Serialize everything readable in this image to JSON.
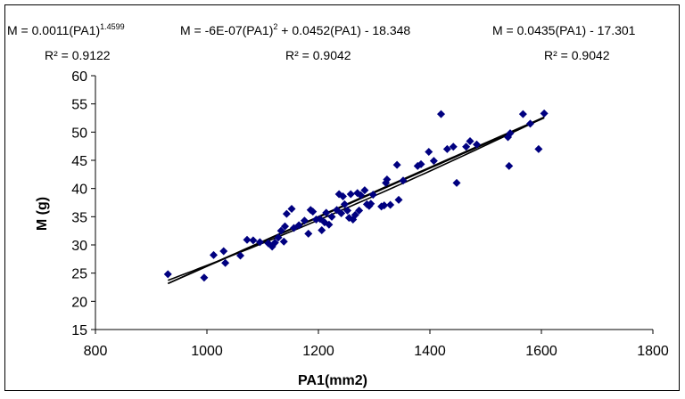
{
  "chart_data": {
    "type": "scatter",
    "xlabel": "PA1(mm2)",
    "ylabel": "M (g)",
    "xlim": [
      800,
      1800
    ],
    "ylim": [
      15,
      60
    ],
    "xticks": [
      800,
      1000,
      1200,
      1400,
      1600,
      1800
    ],
    "yticks": [
      15,
      20,
      25,
      30,
      35,
      40,
      45,
      50,
      55,
      60
    ],
    "grid": false,
    "marker_color": "#000080",
    "line_color": "#000000",
    "points": [
      [
        930,
        24.8
      ],
      [
        995,
        24.2
      ],
      [
        1012,
        28.2
      ],
      [
        1030,
        28.9
      ],
      [
        1033,
        26.8
      ],
      [
        1060,
        28.1
      ],
      [
        1072,
        30.9
      ],
      [
        1083,
        30.8
      ],
      [
        1095,
        30.5
      ],
      [
        1110,
        30.3
      ],
      [
        1117,
        29.7
      ],
      [
        1122,
        30.4
      ],
      [
        1128,
        31.3
      ],
      [
        1133,
        32.5
      ],
      [
        1138,
        30.6
      ],
      [
        1140,
        33.3
      ],
      [
        1143,
        35.5
      ],
      [
        1152,
        36.4
      ],
      [
        1156,
        33.0
      ],
      [
        1165,
        33.5
      ],
      [
        1175,
        34.3
      ],
      [
        1182,
        32.0
      ],
      [
        1186,
        36.2
      ],
      [
        1190,
        35.9
      ],
      [
        1196,
        34.5
      ],
      [
        1203,
        34.6
      ],
      [
        1206,
        32.6
      ],
      [
        1211,
        34.0
      ],
      [
        1214,
        35.7
      ],
      [
        1219,
        33.6
      ],
      [
        1224,
        35.0
      ],
      [
        1233,
        36.2
      ],
      [
        1237,
        39.0
      ],
      [
        1241,
        35.6
      ],
      [
        1244,
        38.6
      ],
      [
        1247,
        37.2
      ],
      [
        1252,
        36.1
      ],
      [
        1255,
        34.8
      ],
      [
        1258,
        39.0
      ],
      [
        1262,
        34.5
      ],
      [
        1266,
        35.3
      ],
      [
        1270,
        39.2
      ],
      [
        1273,
        36.1
      ],
      [
        1276,
        38.8
      ],
      [
        1283,
        39.7
      ],
      [
        1287,
        37.2
      ],
      [
        1291,
        36.9
      ],
      [
        1294,
        37.3
      ],
      [
        1298,
        38.9
      ],
      [
        1313,
        36.8
      ],
      [
        1318,
        37.0
      ],
      [
        1321,
        41.0
      ],
      [
        1323,
        41.6
      ],
      [
        1329,
        37.1
      ],
      [
        1341,
        44.2
      ],
      [
        1344,
        38.0
      ],
      [
        1352,
        41.4
      ],
      [
        1378,
        44.0
      ],
      [
        1384,
        44.3
      ],
      [
        1398,
        46.5
      ],
      [
        1407,
        44.9
      ],
      [
        1420,
        53.2
      ],
      [
        1431,
        47.0
      ],
      [
        1442,
        47.4
      ],
      [
        1448,
        41.0
      ],
      [
        1465,
        47.4
      ],
      [
        1472,
        48.4
      ],
      [
        1484,
        47.8
      ],
      [
        1540,
        49.1
      ],
      [
        1542,
        44.0
      ],
      [
        1544,
        49.8
      ],
      [
        1567,
        53.2
      ],
      [
        1580,
        51.5
      ],
      [
        1595,
        47.0
      ],
      [
        1605,
        53.3
      ]
    ],
    "trendlines": [
      {
        "type": "power",
        "equation": "M = 0.0011(PA1)",
        "exponent": "1.4599",
        "r2": "R² = 0.9122"
      },
      {
        "type": "poly2",
        "equation_a": "M = -6E-07(PA1)",
        "equation_b": " + 0.0452(PA1) - 18.348",
        "exponent": "2",
        "r2": "R² = 0.9042"
      },
      {
        "type": "linear",
        "equation": "M = 0.0435(PA1) - 17.301",
        "r2": "R² = 0.9042"
      }
    ]
  }
}
